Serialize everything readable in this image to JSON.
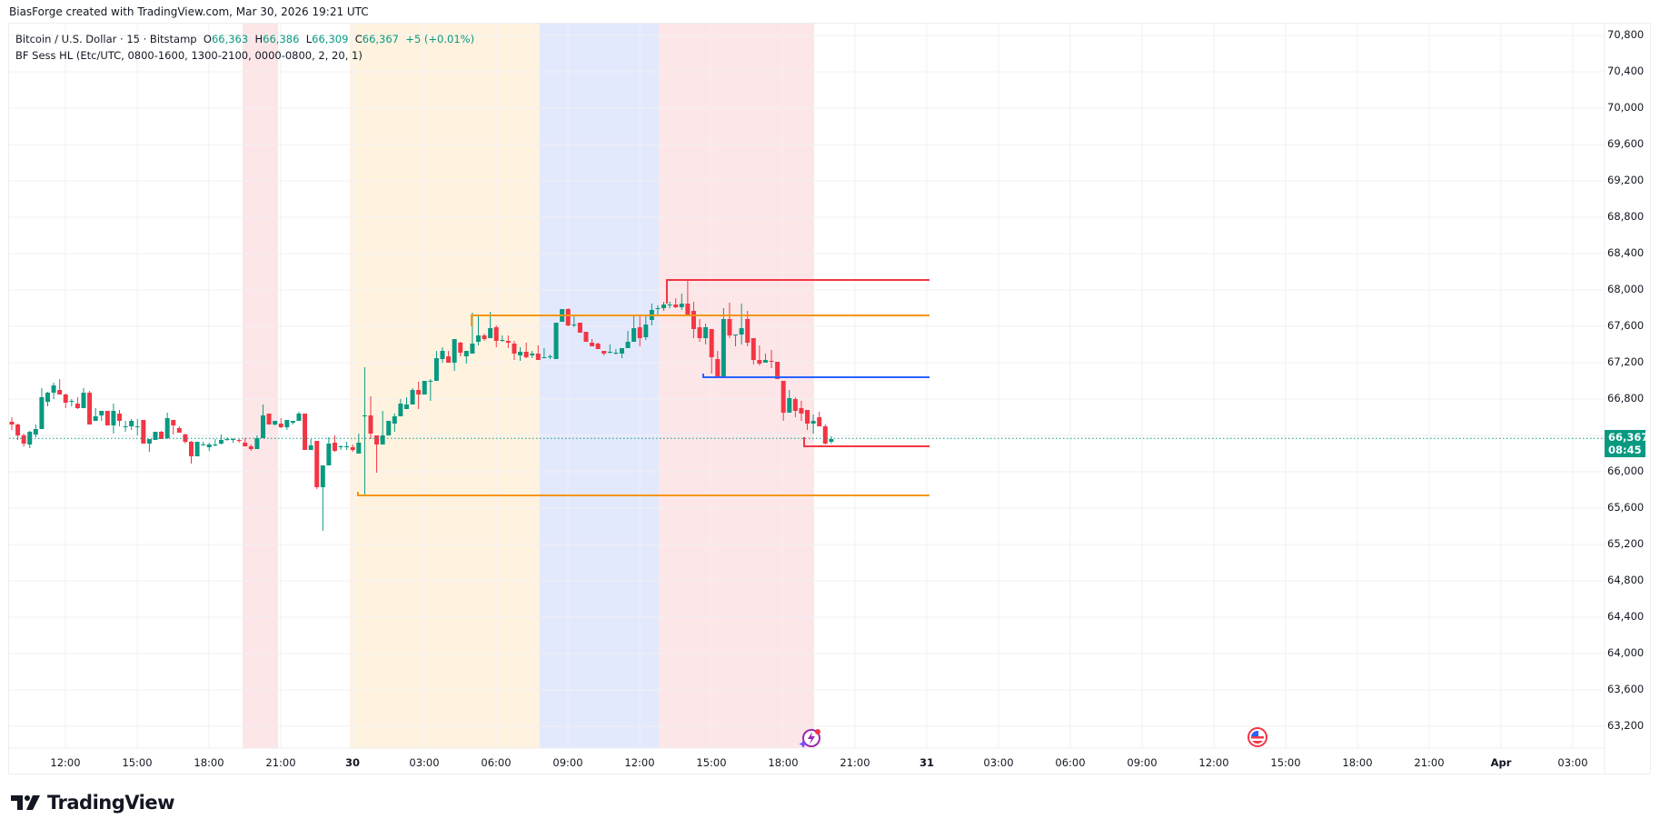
{
  "credit": "BiasForge created with TradingView.com, Mar 30, 2026 19:21 UTC",
  "legend": {
    "symbol": "Bitcoin / U.S. Dollar · 15 · Bitstamp",
    "o_label": "O",
    "o": "66,363",
    "h_label": "H",
    "h": "66,386",
    "l_label": "L",
    "l": "66,309",
    "c_label": "C",
    "c": "66,367",
    "change": "+5 (+0.01%)",
    "indicator": "BF Sess HL (Etc/UTC, 0800-1600, 1300-2100, 0000-0800, 2, 20, 1)"
  },
  "last_price": {
    "price": "66,367",
    "countdown": "08:45"
  },
  "brand": {
    "name": "TradingView"
  },
  "colors": {
    "up": "#089981",
    "down": "#f23645",
    "asia_bg": "#fff3e0",
    "london_bg": "#e3e9fd",
    "ny_bg": "#fde6e8",
    "asia_line": "#f5960a",
    "ny_line": "#f23645",
    "london_line": "#2962ff"
  },
  "chart_data": {
    "type": "candlestick",
    "title": "Bitcoin / U.S. Dollar · 15 · Bitstamp",
    "interval": "15m",
    "price_ticks": [
      "70,800",
      "70,400",
      "70,000",
      "69,600",
      "69,200",
      "68,800",
      "68,400",
      "68,000",
      "67,600",
      "67,200",
      "66,800",
      "66,400",
      "66,000",
      "65,600",
      "65,200",
      "64,800",
      "64,400",
      "64,000",
      "63,600",
      "63,200"
    ],
    "time_ticks": [
      "12:00",
      "15:00",
      "18:00",
      "21:00",
      "30",
      "03:00",
      "06:00",
      "09:00",
      "12:00",
      "15:00",
      "18:00",
      "21:00",
      "31",
      "03:00",
      "06:00",
      "09:00",
      "12:00",
      "15:00",
      "18:00",
      "21:00",
      "Apr",
      "03:00"
    ],
    "ylim": [
      62900,
      71000
    ],
    "last": 66367,
    "session_levels": [
      {
        "name": "Asia high",
        "price": 67720,
        "color": "#f5960a"
      },
      {
        "name": "Asia low",
        "price": 65740,
        "color": "#f5960a"
      },
      {
        "name": "NY high",
        "price": 68110,
        "color": "#f23645"
      },
      {
        "name": "NY low",
        "price": 66280,
        "color": "#f23645"
      },
      {
        "name": "London low",
        "price": 67040,
        "color": "#2962ff"
      }
    ],
    "ohlc": [
      [
        66550,
        66600,
        66460,
        66520
      ],
      [
        66520,
        66530,
        66350,
        66400
      ],
      [
        66400,
        66420,
        66280,
        66310
      ],
      [
        66300,
        66450,
        66260,
        66440
      ],
      [
        66410,
        66520,
        66380,
        66470
      ],
      [
        66470,
        66920,
        66470,
        66820
      ],
      [
        66770,
        66880,
        66720,
        66870
      ],
      [
        66870,
        66980,
        66800,
        66950
      ],
      [
        66900,
        67020,
        66860,
        66850
      ],
      [
        66850,
        66860,
        66700,
        66760
      ],
      [
        66770,
        66800,
        66720,
        66780
      ],
      [
        66750,
        66820,
        66690,
        66700
      ],
      [
        66700,
        66920,
        66700,
        66870
      ],
      [
        66870,
        66890,
        66540,
        66520
      ],
      [
        66560,
        66700,
        66600,
        66610
      ],
      [
        66620,
        66670,
        66560,
        66670
      ],
      [
        66670,
        66670,
        66540,
        66510
      ],
      [
        66510,
        66750,
        66420,
        66670
      ],
      [
        66640,
        66680,
        66500,
        66560
      ],
      [
        66490,
        66560,
        66440,
        66500
      ],
      [
        66500,
        66580,
        66460,
        66560
      ],
      [
        66500,
        66580,
        66400,
        66500
      ],
      [
        66570,
        66570,
        66310,
        66310
      ],
      [
        66310,
        66340,
        66220,
        66360
      ],
      [
        66350,
        66430,
        66350,
        66440
      ],
      [
        66440,
        66450,
        66380,
        66360
      ],
      [
        66370,
        66650,
        66360,
        66590
      ],
      [
        66570,
        66570,
        66410,
        66510
      ],
      [
        66480,
        66500,
        66430,
        66430
      ],
      [
        66410,
        66420,
        66310,
        66330
      ],
      [
        66330,
        66340,
        66090,
        66170
      ],
      [
        66170,
        66330,
        66170,
        66330
      ],
      [
        66300,
        66330,
        66290,
        66300
      ],
      [
        66270,
        66320,
        66230,
        66300
      ],
      [
        66290,
        66360,
        66280,
        66300
      ],
      [
        66310,
        66410,
        66300,
        66350
      ],
      [
        66350,
        66380,
        66340,
        66360
      ],
      [
        66360,
        66370,
        66320,
        66360
      ],
      [
        66350,
        66360,
        66320,
        66340
      ],
      [
        66320,
        66370,
        66300,
        66280
      ],
      [
        66280,
        66300,
        66230,
        66250
      ],
      [
        66250,
        66400,
        66250,
        66370
      ],
      [
        66370,
        66740,
        66370,
        66620
      ],
      [
        66640,
        66620,
        66540,
        66520
      ],
      [
        66520,
        66560,
        66510,
        66560
      ],
      [
        66530,
        66590,
        66480,
        66490
      ],
      [
        66490,
        66570,
        66460,
        66570
      ],
      [
        66540,
        66560,
        66520,
        66560
      ],
      [
        66560,
        66660,
        66560,
        66640
      ],
      [
        66640,
        66640,
        66330,
        66240
      ],
      [
        66240,
        66360,
        66290,
        66290
      ],
      [
        66340,
        66330,
        65810,
        65830
      ],
      [
        65830,
        66010,
        65350,
        66070
      ],
      [
        66070,
        66380,
        66070,
        66310
      ],
      [
        66320,
        66400,
        66220,
        66230
      ],
      [
        66280,
        66290,
        66240,
        66280
      ],
      [
        66280,
        66330,
        66240,
        66280
      ],
      [
        66270,
        66300,
        66220,
        66240
      ],
      [
        66200,
        66420,
        66220,
        66320
      ],
      [
        66620,
        67150,
        65740,
        66620
      ],
      [
        66620,
        66830,
        66360,
        66420
      ],
      [
        66400,
        66400,
        65990,
        66300
      ],
      [
        66300,
        66670,
        66450,
        66400
      ],
      [
        66400,
        66560,
        66430,
        66560
      ],
      [
        66530,
        66640,
        66440,
        66610
      ],
      [
        66610,
        66800,
        66650,
        66750
      ],
      [
        66690,
        66820,
        66720,
        66740
      ],
      [
        66740,
        66920,
        66760,
        66900
      ],
      [
        66900,
        66990,
        66690,
        66850
      ],
      [
        66850,
        67000,
        66900,
        67000
      ],
      [
        67000,
        67020,
        66780,
        67000
      ],
      [
        67000,
        67330,
        67000,
        67250
      ],
      [
        67240,
        67370,
        67200,
        67330
      ],
      [
        67270,
        67330,
        67260,
        67200
      ],
      [
        67200,
        67430,
        67110,
        67460
      ],
      [
        67420,
        67430,
        67270,
        67310
      ],
      [
        67270,
        67320,
        67190,
        67330
      ],
      [
        67300,
        67750,
        67310,
        67410
      ],
      [
        67430,
        67720,
        67390,
        67500
      ],
      [
        67500,
        67520,
        67440,
        67460
      ],
      [
        67470,
        67760,
        67610,
        67580
      ],
      [
        67590,
        67610,
        67370,
        67440
      ],
      [
        67440,
        67500,
        67430,
        67450
      ],
      [
        67440,
        67500,
        67360,
        67420
      ],
      [
        67410,
        67440,
        67230,
        67300
      ],
      [
        67280,
        67370,
        67220,
        67320
      ],
      [
        67320,
        67420,
        67250,
        67260
      ],
      [
        67280,
        67330,
        67250,
        67300
      ],
      [
        67300,
        67390,
        67230,
        67230
      ],
      [
        67260,
        67360,
        67260,
        67260
      ],
      [
        67260,
        67290,
        67240,
        67270
      ],
      [
        67240,
        67560,
        67240,
        67640
      ],
      [
        67650,
        67780,
        67650,
        67790
      ],
      [
        67790,
        67800,
        67600,
        67610
      ],
      [
        67610,
        67720,
        67590,
        67620
      ],
      [
        67640,
        67640,
        67560,
        67530
      ],
      [
        67540,
        67530,
        67450,
        67430
      ],
      [
        67420,
        67460,
        67410,
        67380
      ],
      [
        67410,
        67420,
        67380,
        67350
      ],
      [
        67330,
        67330,
        67280,
        67300
      ],
      [
        67310,
        67400,
        67300,
        67320
      ],
      [
        67310,
        67350,
        67290,
        67310
      ],
      [
        67300,
        67320,
        67250,
        67360
      ],
      [
        67360,
        67550,
        67390,
        67430
      ],
      [
        67430,
        67730,
        67460,
        67580
      ],
      [
        67590,
        67710,
        67380,
        67470
      ],
      [
        67480,
        67720,
        67450,
        67620
      ],
      [
        67670,
        67850,
        67610,
        67780
      ],
      [
        67790,
        67830,
        67730,
        67800
      ],
      [
        67800,
        67870,
        67770,
        67840
      ],
      [
        67830,
        67870,
        67800,
        67840
      ],
      [
        67840,
        67910,
        67800,
        67810
      ],
      [
        67810,
        67960,
        67780,
        67850
      ],
      [
        67850,
        68110,
        67750,
        67730
      ],
      [
        67770,
        67870,
        67470,
        67570
      ],
      [
        67590,
        67680,
        67430,
        67470
      ],
      [
        67470,
        67630,
        67400,
        67590
      ],
      [
        67570,
        67570,
        67080,
        67260
      ],
      [
        67240,
        67330,
        67040,
        67040
      ],
      [
        67030,
        67800,
        67030,
        67680
      ],
      [
        67680,
        67860,
        67470,
        67500
      ],
      [
        67510,
        67510,
        67380,
        67510
      ],
      [
        67510,
        67850,
        67400,
        67580
      ],
      [
        67680,
        67770,
        67380,
        67420
      ],
      [
        67470,
        67470,
        67180,
        67230
      ],
      [
        67230,
        67390,
        67170,
        67190
      ],
      [
        67200,
        67300,
        67200,
        67230
      ],
      [
        67220,
        67340,
        67140,
        67210
      ],
      [
        67210,
        67210,
        67080,
        67020
      ],
      [
        67000,
        67000,
        66560,
        66650
      ],
      [
        66650,
        66900,
        66650,
        66810
      ],
      [
        66800,
        66820,
        66600,
        66670
      ],
      [
        66700,
        66780,
        66560,
        66640
      ],
      [
        66680,
        66620,
        66460,
        66530
      ],
      [
        66530,
        66630,
        66420,
        66560
      ],
      [
        66600,
        66660,
        66500,
        66500
      ],
      [
        66500,
        66520,
        66300,
        66310
      ],
      [
        66330,
        66390,
        66310,
        66360
      ]
    ]
  }
}
